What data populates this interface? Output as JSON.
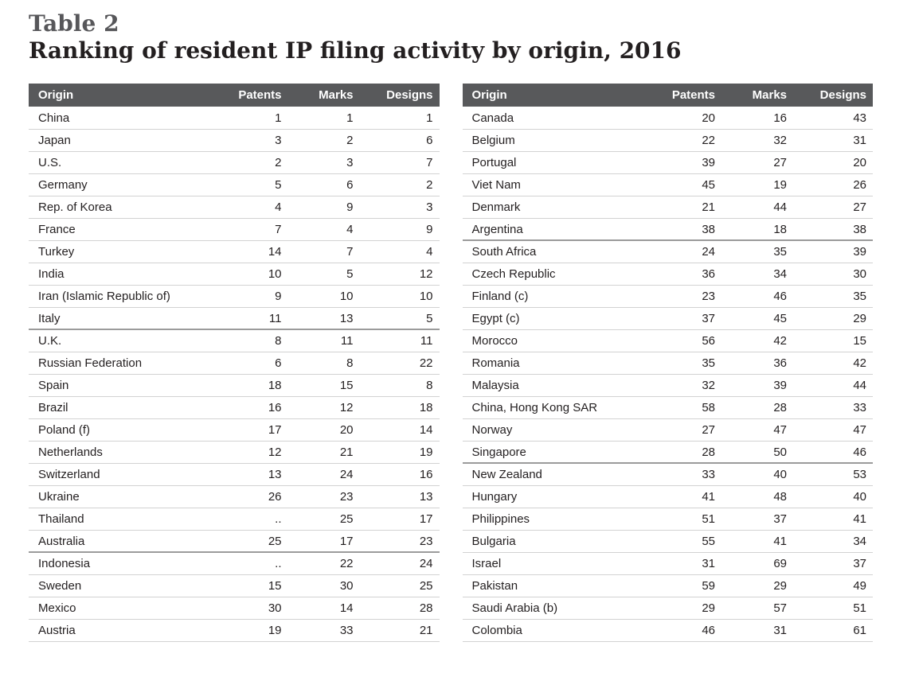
{
  "header": {
    "table_number": "Table 2",
    "title": "Ranking of resident IP filing activity by origin, 2016"
  },
  "colors": {
    "header_bg": "#58595b",
    "header_text": "#ffffff",
    "title_gray": "#57575a",
    "text": "#231f20",
    "row_divider": "#d2d2d2",
    "group_divider": "#9b9b9b"
  },
  "tables": [
    {
      "name": "left",
      "columns": [
        "Origin",
        "Patents",
        "Marks",
        "Designs"
      ],
      "group_separators_after_rows": [
        10,
        20
      ],
      "rows": [
        [
          "China",
          "1",
          "1",
          "1"
        ],
        [
          "Japan",
          "3",
          "2",
          "6"
        ],
        [
          "U.S.",
          "2",
          "3",
          "7"
        ],
        [
          "Germany",
          "5",
          "6",
          "2"
        ],
        [
          "Rep. of Korea",
          "4",
          "9",
          "3"
        ],
        [
          "France",
          "7",
          "4",
          "9"
        ],
        [
          "Turkey",
          "14",
          "7",
          "4"
        ],
        [
          "India",
          "10",
          "5",
          "12"
        ],
        [
          "Iran (Islamic Republic of)",
          "9",
          "10",
          "10"
        ],
        [
          "Italy",
          "11",
          "13",
          "5"
        ],
        [
          "U.K.",
          "8",
          "11",
          "11"
        ],
        [
          "Russian Federation",
          "6",
          "8",
          "22"
        ],
        [
          "Spain",
          "18",
          "15",
          "8"
        ],
        [
          "Brazil",
          "16",
          "12",
          "18"
        ],
        [
          "Poland (f)",
          "17",
          "20",
          "14"
        ],
        [
          "Netherlands",
          "12",
          "21",
          "19"
        ],
        [
          "Switzerland",
          "13",
          "24",
          "16"
        ],
        [
          "Ukraine",
          "26",
          "23",
          "13"
        ],
        [
          "Thailand",
          "..",
          "25",
          "17"
        ],
        [
          "Australia",
          "25",
          "17",
          "23"
        ],
        [
          "Indonesia",
          "..",
          "22",
          "24"
        ],
        [
          "Sweden",
          "15",
          "30",
          "25"
        ],
        [
          "Mexico",
          "30",
          "14",
          "28"
        ],
        [
          "Austria",
          "19",
          "33",
          "21"
        ]
      ]
    },
    {
      "name": "right",
      "columns": [
        "Origin",
        "Patents",
        "Marks",
        "Designs"
      ],
      "group_separators_after_rows": [
        6,
        16
      ],
      "rows": [
        [
          "Canada",
          "20",
          "16",
          "43"
        ],
        [
          "Belgium",
          "22",
          "32",
          "31"
        ],
        [
          "Portugal",
          "39",
          "27",
          "20"
        ],
        [
          "Viet Nam",
          "45",
          "19",
          "26"
        ],
        [
          "Denmark",
          "21",
          "44",
          "27"
        ],
        [
          "Argentina",
          "38",
          "18",
          "38"
        ],
        [
          "South Africa",
          "24",
          "35",
          "39"
        ],
        [
          "Czech Republic",
          "36",
          "34",
          "30"
        ],
        [
          "Finland (c)",
          "23",
          "46",
          "35"
        ],
        [
          "Egypt (c)",
          "37",
          "45",
          "29"
        ],
        [
          "Morocco",
          "56",
          "42",
          "15"
        ],
        [
          "Romania",
          "35",
          "36",
          "42"
        ],
        [
          "Malaysia",
          "32",
          "39",
          "44"
        ],
        [
          "China, Hong Kong SAR",
          "58",
          "28",
          "33"
        ],
        [
          "Norway",
          "27",
          "47",
          "47"
        ],
        [
          "Singapore",
          "28",
          "50",
          "46"
        ],
        [
          "New Zealand",
          "33",
          "40",
          "53"
        ],
        [
          "Hungary",
          "41",
          "48",
          "40"
        ],
        [
          "Philippines",
          "51",
          "37",
          "41"
        ],
        [
          "Bulgaria",
          "55",
          "41",
          "34"
        ],
        [
          "Israel",
          "31",
          "69",
          "37"
        ],
        [
          "Pakistan",
          "59",
          "29",
          "49"
        ],
        [
          "Saudi Arabia (b)",
          "29",
          "57",
          "51"
        ],
        [
          "Colombia",
          "46",
          "31",
          "61"
        ]
      ]
    }
  ]
}
